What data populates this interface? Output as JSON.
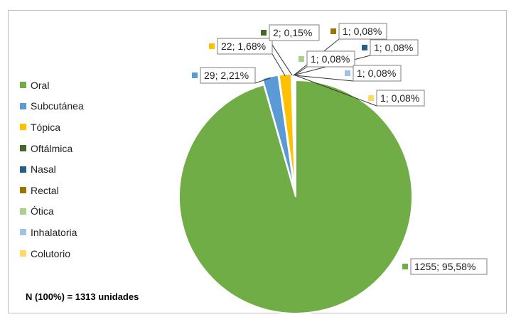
{
  "chart_data": {
    "type": "pie",
    "note": "N (100%) = 1313 unidades",
    "legend_position": "left",
    "total": 1313,
    "slices": [
      {
        "name": "Oral",
        "value": 1255,
        "label": "1255; 95,58%",
        "color": "#70ad47"
      },
      {
        "name": "Subcutánea",
        "value": 29,
        "label": "29; 2,21%",
        "color": "#5b9bd5"
      },
      {
        "name": "Tópica",
        "value": 22,
        "label": "22; 1,68%",
        "color": "#ffc000"
      },
      {
        "name": "Oftálmica",
        "value": 2,
        "label": "2; 0,15%",
        "color": "#43682b"
      },
      {
        "name": "Nasal",
        "value": 1,
        "label": "1; 0,08%",
        "color": "#255e91"
      },
      {
        "name": "Rectal",
        "value": 1,
        "label": "1; 0,08%",
        "color": "#9e7300"
      },
      {
        "name": "Ótica",
        "value": 1,
        "label": "1; 0,08%",
        "color": "#a9d18e"
      },
      {
        "name": "Inhalatoria",
        "value": 1,
        "label": "1; 0,08%",
        "color": "#9dc3e6"
      },
      {
        "name": "Colutorio",
        "value": 1,
        "label": "1; 0,08%",
        "color": "#ffd966"
      }
    ]
  }
}
